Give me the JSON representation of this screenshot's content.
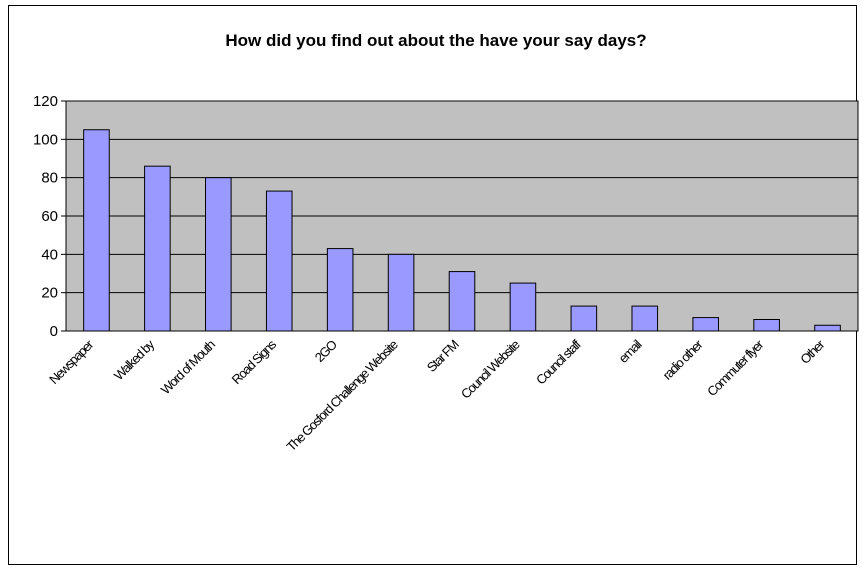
{
  "chart_data": {
    "type": "bar",
    "title": "How did you find out about the have your say days?",
    "xlabel": "",
    "ylabel": "",
    "categories": [
      "Newspaper",
      "Walked by",
      "Word of Mouth",
      "Road Signs",
      "2GO",
      "The Gosford Challenge Website",
      "Star FM",
      "Council Website",
      "Council staff",
      "email",
      "radio other",
      "Commuter flyer",
      "Other"
    ],
    "values": [
      105,
      86,
      80,
      73,
      43,
      40,
      31,
      25,
      13,
      13,
      7,
      6,
      3
    ],
    "ylim": [
      0,
      120
    ],
    "yticks": [
      0,
      20,
      40,
      60,
      80,
      100,
      120
    ],
    "grid": true,
    "legend": "none",
    "colors": {
      "bar": "#9999ff",
      "plot_background": "#c0c0c0",
      "gridline": "#000000",
      "frame": "#000000"
    }
  }
}
